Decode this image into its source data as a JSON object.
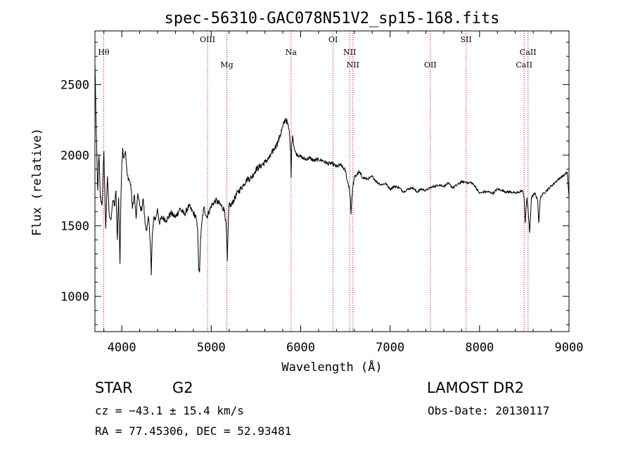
{
  "chart_data": {
    "type": "line",
    "title": "spec-56310-GAC078N51V2_sp15-168.fits",
    "xlabel": "Wavelength (Å)",
    "ylabel": "Flux (relative)",
    "xlim": [
      3700,
      9000
    ],
    "ylim": [
      750,
      2880
    ],
    "x_ticks": [
      4000,
      5000,
      6000,
      7000,
      8000,
      9000
    ],
    "y_ticks": [
      1000,
      1500,
      2000,
      2500
    ],
    "series": [
      {
        "x": [
          3700,
          3715,
          3730,
          3745,
          3760,
          3780,
          3800,
          3820,
          3840,
          3860,
          3880,
          3900,
          3920,
          3935,
          3950,
          3965,
          3980,
          3990,
          4000,
          4010,
          4020,
          4040,
          4060,
          4080,
          4100,
          4120,
          4140,
          4160,
          4180,
          4200,
          4220,
          4240,
          4260,
          4280,
          4300,
          4320,
          4330,
          4340,
          4350,
          4360,
          4380,
          4400,
          4420,
          4450,
          4500,
          4550,
          4600,
          4650,
          4700,
          4750,
          4800,
          4830,
          4850,
          4860,
          4870,
          4880,
          4900,
          4920,
          4950,
          5000,
          5050,
          5100,
          5150,
          5170,
          5180,
          5190,
          5200,
          5220,
          5250,
          5300,
          5350,
          5400,
          5450,
          5500,
          5550,
          5600,
          5650,
          5700,
          5750,
          5800,
          5830,
          5850,
          5870,
          5880,
          5890,
          5893,
          5896,
          5900,
          5910,
          5930,
          5950,
          6000,
          6050,
          6100,
          6150,
          6200,
          6250,
          6300,
          6350,
          6400,
          6450,
          6500,
          6520,
          6540,
          6555,
          6563,
          6570,
          6580,
          6600,
          6650,
          6700,
          6750,
          6800,
          6850,
          6900,
          6950,
          7000,
          7050,
          7100,
          7150,
          7200,
          7250,
          7300,
          7350,
          7400,
          7450,
          7500,
          7550,
          7600,
          7650,
          7700,
          7750,
          7800,
          7850,
          7880,
          7900,
          7950,
          8000,
          8050,
          8100,
          8150,
          8200,
          8250,
          8300,
          8350,
          8400,
          8450,
          8480,
          8498,
          8510,
          8530,
          8542,
          8560,
          8580,
          8620,
          8650,
          8662,
          8680,
          8700,
          8750,
          8800,
          8850,
          8900,
          8950,
          8980,
          9000
        ],
        "y": [
          2650,
          2150,
          1750,
          2000,
          1700,
          1650,
          2030,
          1480,
          1850,
          1580,
          1540,
          1680,
          1640,
          1750,
          1400,
          1700,
          1230,
          1690,
          1940,
          2050,
          1980,
          2030,
          1860,
          1830,
          1790,
          1620,
          1720,
          1550,
          1730,
          1640,
          1610,
          1690,
          1520,
          1470,
          1560,
          1380,
          1150,
          1420,
          1500,
          1560,
          1550,
          1620,
          1520,
          1560,
          1540,
          1590,
          1560,
          1620,
          1580,
          1640,
          1590,
          1560,
          1450,
          1200,
          1170,
          1400,
          1550,
          1630,
          1560,
          1640,
          1680,
          1650,
          1610,
          1470,
          1250,
          1500,
          1660,
          1640,
          1680,
          1740,
          1780,
          1830,
          1840,
          1900,
          1920,
          1950,
          1980,
          2040,
          2100,
          2200,
          2260,
          2230,
          2180,
          2100,
          1980,
          1840,
          1950,
          2080,
          2140,
          2040,
          2010,
          1990,
          1970,
          1980,
          1960,
          1970,
          1960,
          1940,
          1940,
          1920,
          1930,
          1890,
          1820,
          1780,
          1700,
          1580,
          1670,
          1760,
          1840,
          1880,
          1840,
          1830,
          1850,
          1810,
          1790,
          1800,
          1760,
          1780,
          1770,
          1740,
          1760,
          1770,
          1740,
          1760,
          1750,
          1770,
          1780,
          1790,
          1780,
          1800,
          1770,
          1790,
          1810,
          1810,
          1800,
          1810,
          1780,
          1730,
          1740,
          1740,
          1730,
          1760,
          1750,
          1740,
          1740,
          1730,
          1740,
          1750,
          1700,
          1520,
          1700,
          1620,
          1450,
          1700,
          1730,
          1680,
          1520,
          1700,
          1720,
          1750,
          1780,
          1810,
          1840,
          1860,
          1880,
          1700
        ]
      }
    ],
    "spectral_lines": [
      {
        "label": "Hθ",
        "x": 3798,
        "row": 1
      },
      {
        "label": "OIII",
        "x": 4959,
        "row": 0
      },
      {
        "label": "Mg",
        "x": 5175,
        "row": 2
      },
      {
        "label": "Na",
        "x": 5893,
        "row": 1
      },
      {
        "label": "OI",
        "x": 6363,
        "row": 0
      },
      {
        "label": "NII",
        "x": 6548,
        "row": 1
      },
      {
        "label": "NII",
        "x": 6584,
        "row": 2
      },
      {
        "label": "OII",
        "x": 7450,
        "row": 2
      },
      {
        "label": "SII",
        "x": 7850,
        "row": 0
      },
      {
        "label": "CaII",
        "x": 8498,
        "row": 2
      },
      {
        "label": "CaII",
        "x": 8542,
        "row": 1
      }
    ],
    "colors": {
      "spectrum": "#000000",
      "lines": "#cc0000"
    }
  },
  "info": {
    "object_class": "STAR",
    "subclass": "G2",
    "survey": "LAMOST DR2",
    "redshift": "cz = −43.1 ± 15.4 km/s",
    "obs_date": "Obs-Date: 20130117",
    "coords": "RA =  77.45306, DEC =  52.93481"
  }
}
